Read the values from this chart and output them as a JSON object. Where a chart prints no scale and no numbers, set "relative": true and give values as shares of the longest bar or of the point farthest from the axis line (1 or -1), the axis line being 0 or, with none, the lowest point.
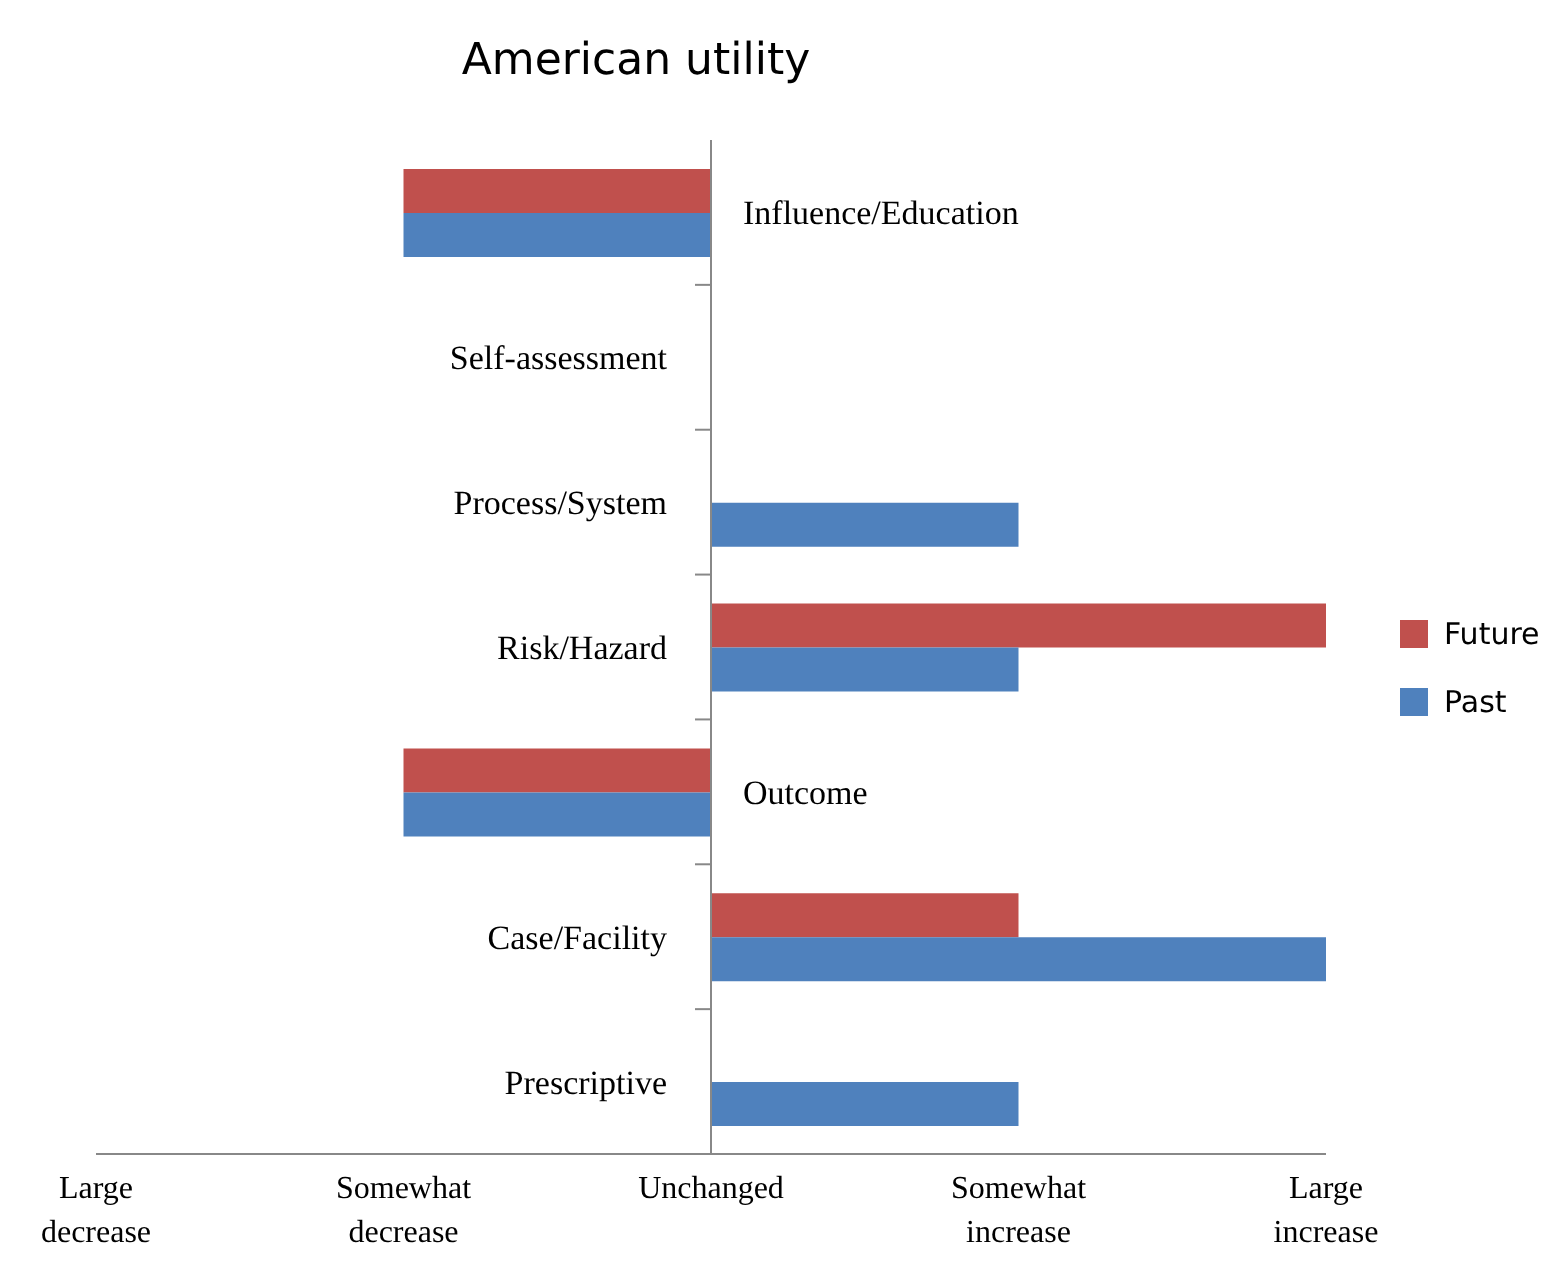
{
  "chart_data": {
    "type": "bar",
    "orientation": "horizontal",
    "title": "American utility",
    "relative": true,
    "categories": [
      "Influence/Education",
      "Self-assessment",
      "Process/System",
      "Risk/Hazard",
      "Outcome",
      "Case/Facility",
      "Prescriptive"
    ],
    "series": [
      {
        "name": "Future",
        "color": "#c0504d",
        "values": [
          -0.5,
          0,
          0,
          1,
          -0.5,
          0.5,
          0
        ]
      },
      {
        "name": "Past",
        "color": "#4f81bd",
        "values": [
          -0.5,
          0,
          0.5,
          0.5,
          -0.5,
          1,
          0.5
        ]
      }
    ],
    "annotations": [
      "Large decrease",
      "Somewhat decrease",
      "Unchanged",
      "Somewhat increase",
      "Large increase"
    ],
    "legend": "right"
  }
}
